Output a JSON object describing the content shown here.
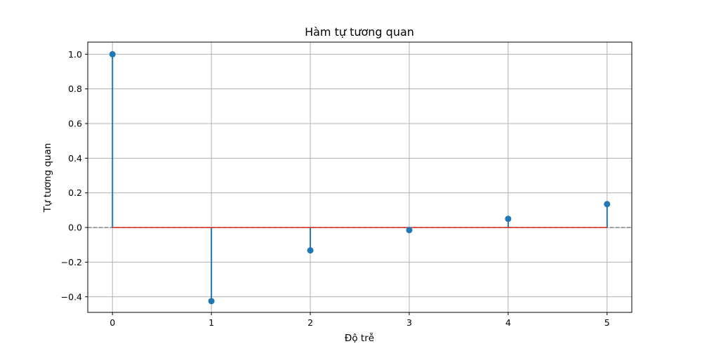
{
  "chart_data": {
    "type": "stem",
    "title": "Hàm tự tương quan",
    "xlabel": "Độ trễ",
    "ylabel": "Tự tương quan",
    "x": [
      0,
      1,
      2,
      3,
      4,
      5
    ],
    "values": [
      1.0,
      -0.425,
      -0.132,
      -0.015,
      0.05,
      0.135
    ],
    "xlim": [
      -0.25,
      5.25
    ],
    "ylim": [
      -0.49,
      1.07
    ],
    "xticks": [
      0,
      1,
      2,
      3,
      4,
      5
    ],
    "xtick_labels": [
      "0",
      "1",
      "2",
      "3",
      "4",
      "5"
    ],
    "yticks": [
      -0.4,
      -0.2,
      0.0,
      0.2,
      0.4,
      0.6,
      0.8,
      1.0
    ],
    "ytick_labels": [
      "−0.4",
      "−0.2",
      "0.0",
      "0.2",
      "0.4",
      "0.6",
      "0.8",
      "1.0"
    ],
    "grid": true,
    "reference_line": {
      "y": 0,
      "style": "dashed",
      "color": "#808080"
    },
    "colors": {
      "stem": "#1f77b4",
      "marker": "#1f77b4",
      "baseline": "#d62728",
      "grid": "#b0b0b0"
    }
  }
}
